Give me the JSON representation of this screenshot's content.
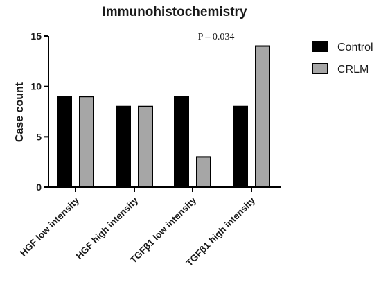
{
  "chart_data": {
    "type": "bar",
    "title": "Immunohistochemistry",
    "xlabel": "",
    "ylabel": "Case count",
    "ylim": [
      0,
      15
    ],
    "yticks": [
      0,
      5,
      10,
      15
    ],
    "categories": [
      "HGF low intensity",
      "HGF high intensity",
      "TGFβ1 low intensity",
      "TGFβ1 high intensity"
    ],
    "series": [
      {
        "name": "Control",
        "values": [
          9,
          8,
          9,
          8
        ],
        "color": "#000000"
      },
      {
        "name": "CRLM",
        "values": [
          9,
          8,
          3,
          14
        ],
        "color": "#a6a6a6"
      }
    ],
    "annotations": [
      "P – 0.034"
    ],
    "legend_position": "right",
    "grid": false
  }
}
